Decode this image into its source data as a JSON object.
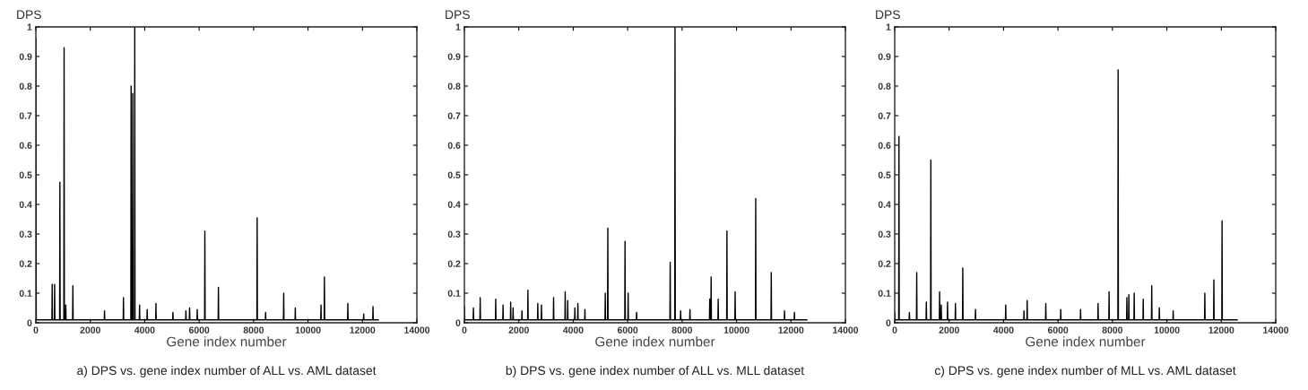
{
  "chart_data": [
    {
      "type": "line",
      "title": "a) DPS vs. gene index number of ALL vs. AML dataset",
      "xlabel": "Gene index number",
      "ylabel": "DPS",
      "color": "#000000",
      "line_style": "solid",
      "xlim": [
        0,
        14000
      ],
      "xticks": [
        0,
        2000,
        4000,
        6000,
        8000,
        10000,
        12000,
        14000
      ],
      "ylim": [
        0,
        1
      ],
      "yticks": [
        0,
        0.1,
        0.2,
        0.3,
        0.4,
        0.5,
        0.6,
        0.7,
        0.8,
        0.9,
        1
      ],
      "x": [
        0,
        15,
        590,
        600,
        610,
        680,
        690,
        700,
        873,
        883,
        893,
        1028,
        1038,
        1048,
        1090,
        1100,
        1110,
        1350,
        1360,
        1370,
        2513,
        2523,
        2533,
        3209,
        3219,
        3229,
        3490,
        3500,
        3510,
        3550,
        3560,
        3570,
        3624,
        3634,
        3644,
        3801,
        3811,
        3821,
        4081,
        4091,
        4101,
        4403,
        4413,
        4423,
        5026,
        5036,
        5046,
        5504,
        5514,
        5524,
        5639,
        5649,
        5659,
        5919,
        5929,
        5939,
        6200,
        6210,
        6220,
        6698,
        6708,
        6718,
        8121,
        8131,
        8141,
        8432,
        8442,
        8452,
        9097,
        9107,
        9117,
        9523,
        9533,
        9543,
        10468,
        10478,
        10488,
        10593,
        10603,
        10613,
        11454,
        11464,
        11474,
        12036,
        12046,
        12056,
        12378,
        12388,
        12398,
        12582
      ],
      "values": [
        0.96,
        0.01,
        0.01,
        0.13,
        0.01,
        0.01,
        0.13,
        0.01,
        0.01,
        0.475,
        0.01,
        0.01,
        0.93,
        0.01,
        0.01,
        0.06,
        0.01,
        0.01,
        0.125,
        0.01,
        0.01,
        0.04,
        0.01,
        0.01,
        0.085,
        0.01,
        0.01,
        0.8,
        0.01,
        0.01,
        0.775,
        0.01,
        0.01,
        1,
        0.01,
        0.01,
        0.06,
        0.01,
        0.01,
        0.045,
        0.01,
        0.01,
        0.065,
        0.01,
        0.01,
        0.035,
        0.01,
        0.01,
        0.04,
        0.01,
        0.01,
        0.05,
        0.01,
        0.01,
        0.045,
        0.01,
        0.01,
        0.31,
        0.01,
        0.01,
        0.12,
        0.01,
        0.01,
        0.355,
        0.01,
        0.01,
        0.035,
        0.01,
        0.01,
        0.1,
        0.01,
        0.01,
        0.05,
        0.01,
        0.01,
        0.06,
        0.01,
        0.01,
        0.155,
        0.01,
        0.01,
        0.065,
        0.01,
        0.01,
        0.03,
        0.01,
        0.01,
        0.055,
        0.01,
        0.01
      ]
    },
    {
      "type": "line",
      "title": "b) DPS vs. gene index number of ALL vs. MLL dataset",
      "xlabel": "Gene index number",
      "ylabel": "DPS",
      "color": "#000000",
      "line_style": "solid",
      "xlim": [
        0,
        14000
      ],
      "xticks": [
        0,
        2000,
        4000,
        6000,
        8000,
        10000,
        12000,
        14000
      ],
      "ylim": [
        0,
        1
      ],
      "yticks": [
        0,
        0.1,
        0.2,
        0.3,
        0.4,
        0.5,
        0.6,
        0.7,
        0.8,
        0.9,
        1
      ],
      "x": [
        0,
        10,
        322,
        332,
        342,
        571,
        581,
        591,
        1141,
        1151,
        1161,
        1411,
        1421,
        1431,
        1691,
        1701,
        1711,
        1780,
        1790,
        1800,
        2106,
        2116,
        2126,
        2324,
        2334,
        2344,
        2687,
        2697,
        2707,
        2822,
        2832,
        2842,
        3268,
        3278,
        3288,
        3694,
        3704,
        3714,
        3787,
        3797,
        3807,
        4050,
        4060,
        4070,
        4160,
        4170,
        4180,
        4419,
        4429,
        4439,
        5166,
        5176,
        5186,
        5260,
        5270,
        5280,
        5893,
        5903,
        5913,
        6007,
        6017,
        6027,
        6318,
        6328,
        6338,
        7552,
        7562,
        7572,
        7729,
        7739,
        7749,
        7936,
        7946,
        7956,
        8278,
        8288,
        8298,
        9005,
        9015,
        9025,
        9056,
        9066,
        9076,
        9316,
        9326,
        9336,
        9637,
        9647,
        9657,
        9938,
        9948,
        9958,
        10695,
        10705,
        10715,
        11266,
        11276,
        11286,
        11753,
        11763,
        11773,
        12117,
        12127,
        12137,
        12582
      ],
      "values": [
        0.055,
        0.01,
        0.01,
        0.05,
        0.01,
        0.01,
        0.085,
        0.01,
        0.01,
        0.08,
        0.01,
        0.01,
        0.06,
        0.01,
        0.01,
        0.07,
        0.01,
        0.01,
        0.05,
        0.01,
        0.01,
        0.04,
        0.01,
        0.01,
        0.11,
        0.01,
        0.01,
        0.065,
        0.01,
        0.01,
        0.06,
        0.01,
        0.01,
        0.085,
        0.01,
        0.01,
        0.105,
        0.01,
        0.01,
        0.075,
        0.01,
        0.01,
        0.05,
        0.01,
        0.01,
        0.065,
        0.01,
        0.01,
        0.045,
        0.01,
        0.01,
        0.1,
        0.01,
        0.01,
        0.32,
        0.01,
        0.01,
        0.275,
        0.01,
        0.01,
        0.1,
        0.01,
        0.01,
        0.035,
        0.01,
        0.01,
        0.205,
        0.01,
        0.01,
        1,
        0.01,
        0.01,
        0.04,
        0.01,
        0.01,
        0.045,
        0.01,
        0.01,
        0.08,
        0.01,
        0.01,
        0.155,
        0.01,
        0.01,
        0.08,
        0.01,
        0.01,
        0.31,
        0.01,
        0.01,
        0.105,
        0.01,
        0.01,
        0.42,
        0.01,
        0.01,
        0.17,
        0.01,
        0.01,
        0.04,
        0.01,
        0.01,
        0.035,
        0.01,
        0.01
      ]
    },
    {
      "type": "line",
      "title": "c) DPS vs. gene index number of MLL vs. AML dataset",
      "xlabel": "Gene index number",
      "ylabel": "DPS",
      "color": "#000000",
      "line_style": "solid",
      "xlim": [
        0,
        14000
      ],
      "xticks": [
        0,
        2000,
        4000,
        6000,
        8000,
        10000,
        12000,
        14000
      ],
      "ylim": [
        0,
        1
      ],
      "yticks": [
        0,
        0.1,
        0.2,
        0.3,
        0.4,
        0.5,
        0.6,
        0.7,
        0.8,
        0.9,
        1
      ],
      "x": [
        0,
        10,
        146,
        156,
        166,
        530,
        540,
        550,
        799,
        809,
        819,
        1152,
        1162,
        1172,
        1318,
        1328,
        1338,
        1640,
        1650,
        1660,
        1700,
        1710,
        1720,
        1931,
        1941,
        1951,
        2221,
        2231,
        2241,
        2491,
        2501,
        2511,
        2958,
        2968,
        2978,
        4069,
        4079,
        4089,
        4740,
        4750,
        4760,
        4857,
        4867,
        4877,
        5542,
        5552,
        5562,
        6092,
        6102,
        6112,
        6819,
        6829,
        6839,
        7462,
        7472,
        7482,
        7867,
        7877,
        7887,
        8199,
        8209,
        8219,
        8520,
        8530,
        8540,
        8593,
        8603,
        8613,
        8790,
        8800,
        8810,
        9122,
        9132,
        9142,
        9434,
        9444,
        9454,
        9714,
        9724,
        9734,
        10222,
        10232,
        10242,
        11385,
        11395,
        11405,
        11717,
        11727,
        11737,
        12018,
        12028,
        12038,
        12582
      ],
      "values": [
        0.035,
        0.01,
        0.01,
        0.63,
        0.01,
        0.01,
        0.035,
        0.01,
        0.01,
        0.17,
        0.01,
        0.01,
        0.07,
        0.01,
        0.01,
        0.55,
        0.01,
        0.01,
        0.105,
        0.01,
        0.01,
        0.06,
        0.01,
        0.01,
        0.07,
        0.01,
        0.01,
        0.065,
        0.01,
        0.01,
        0.185,
        0.01,
        0.01,
        0.045,
        0.01,
        0.01,
        0.06,
        0.01,
        0.01,
        0.04,
        0.01,
        0.01,
        0.075,
        0.01,
        0.01,
        0.065,
        0.01,
        0.01,
        0.045,
        0.01,
        0.01,
        0.045,
        0.01,
        0.01,
        0.065,
        0.01,
        0.01,
        0.105,
        0.01,
        0.01,
        0.855,
        0.01,
        0.01,
        0.085,
        0.01,
        0.01,
        0.095,
        0.01,
        0.01,
        0.1,
        0.01,
        0.01,
        0.08,
        0.01,
        0.01,
        0.125,
        0.01,
        0.01,
        0.05,
        0.01,
        0.01,
        0.04,
        0.01,
        0.01,
        0.1,
        0.01,
        0.01,
        0.145,
        0.01,
        0.01,
        0.345,
        0.01,
        0.01
      ]
    }
  ]
}
